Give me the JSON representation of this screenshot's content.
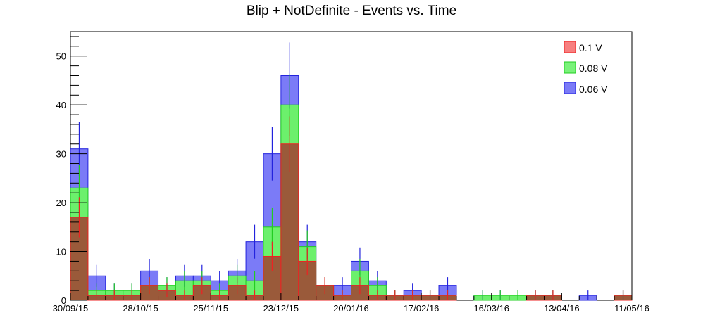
{
  "chart_data": {
    "type": "bar",
    "title": "Blip + NotDefinite - Events vs. Time",
    "xlabel": "",
    "ylabel": "",
    "ylim": [
      0,
      55
    ],
    "yticks": [
      0,
      10,
      20,
      30,
      40,
      50
    ],
    "x_tick_labels": [
      "30/09/15",
      "28/10/15",
      "25/11/15",
      "23/12/15",
      "20/01/16",
      "17/02/16",
      "16/03/16",
      "13/04/16",
      "11/05/16"
    ],
    "bin_start": "30/09/15",
    "bin_width_days": 7,
    "bin_count": 32,
    "grid": false,
    "legend_position": "top-right",
    "series": [
      {
        "name": "0.06 V",
        "fill": "#7b7bf7",
        "line": "#2323dd",
        "values": [
          31,
          5,
          2,
          2,
          6,
          3,
          5,
          5,
          4,
          6,
          12,
          30,
          46,
          12,
          3,
          3,
          8,
          4,
          1,
          2,
          1,
          3,
          0,
          1,
          1,
          1,
          1,
          1,
          0,
          1,
          0,
          1
        ]
      },
      {
        "name": "0.08 V",
        "fill": "#6cf06c",
        "line": "#22cc22",
        "values": [
          23,
          2,
          2,
          2,
          3,
          3,
          4,
          4,
          2,
          5,
          4,
          15,
          40,
          11,
          3,
          1,
          6,
          3,
          1,
          1,
          1,
          1,
          0,
          1,
          1,
          1,
          1,
          1,
          0,
          0,
          0,
          1
        ]
      },
      {
        "name": "0.1 V",
        "fill": "#9a5a3a",
        "line": "#ee2222",
        "values": [
          17,
          1,
          1,
          1,
          3,
          2,
          1,
          3,
          1,
          3,
          1,
          9,
          32,
          8,
          3,
          1,
          3,
          1,
          1,
          1,
          1,
          1,
          0,
          0,
          0,
          0,
          1,
          1,
          0,
          0,
          0,
          1
        ]
      }
    ]
  },
  "legend": {
    "items": [
      {
        "label": "0.1 V",
        "color": "#f78080"
      },
      {
        "label": "0.08 V",
        "color": "#7af27a"
      },
      {
        "label": "0.06 V",
        "color": "#7b7bf7"
      }
    ]
  }
}
